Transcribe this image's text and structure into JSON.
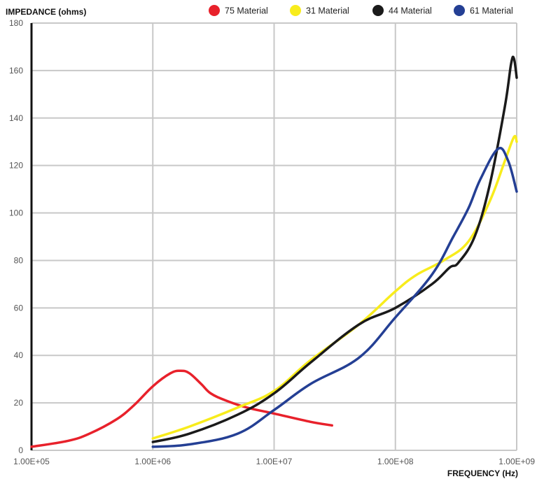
{
  "chart_data": {
    "type": "line",
    "ylabel": "IMPEDANCE (ohms)",
    "xlabel": "FREQUENCY (Hz)",
    "x_scale": "log",
    "xlim": [
      100000,
      1000000000
    ],
    "ylim": [
      0,
      180
    ],
    "x_ticks": [
      100000,
      1000000,
      10000000,
      100000000,
      1000000000
    ],
    "x_tick_labels": [
      "1.00E+05",
      "1.00E+06",
      "1.00E+07",
      "1.00E+08",
      "1.00E+09"
    ],
    "y_ticks": [
      0,
      20,
      40,
      60,
      80,
      100,
      120,
      140,
      160,
      180
    ],
    "y_tick_labels": [
      "0",
      "20",
      "40",
      "60",
      "80",
      "100",
      "120",
      "140",
      "160",
      "180"
    ],
    "grid": true,
    "legend_position": "top-right",
    "series": [
      {
        "name": "75 Material",
        "color": "#e8212b",
        "points": [
          [
            100000,
            1.5
          ],
          [
            200000,
            4
          ],
          [
            300000,
            7
          ],
          [
            500000,
            13
          ],
          [
            700000,
            19
          ],
          [
            1000000,
            27
          ],
          [
            1400000,
            32.5
          ],
          [
            1700000,
            33.5
          ],
          [
            2000000,
            32.5
          ],
          [
            2500000,
            28
          ],
          [
            3000000,
            24
          ],
          [
            4000000,
            21
          ],
          [
            6000000,
            18
          ],
          [
            10000000,
            15.5
          ],
          [
            20000000,
            12
          ],
          [
            30000000,
            10.5
          ]
        ]
      },
      {
        "name": "31 Material",
        "color": "#f8ec1c",
        "points": [
          [
            1000000,
            5
          ],
          [
            2000000,
            10
          ],
          [
            5000000,
            18
          ],
          [
            10000000,
            25
          ],
          [
            20000000,
            38
          ],
          [
            50000000,
            53
          ],
          [
            100000000,
            67
          ],
          [
            150000000,
            74
          ],
          [
            250000000,
            80
          ],
          [
            400000000,
            88
          ],
          [
            600000000,
            105
          ],
          [
            800000000,
            122
          ],
          [
            950000000,
            132
          ],
          [
            1000000000,
            130
          ]
        ]
      },
      {
        "name": "44 Material",
        "color": "#1a1a1a",
        "points": [
          [
            1000000,
            3.5
          ],
          [
            2000000,
            7
          ],
          [
            5000000,
            15
          ],
          [
            10000000,
            24
          ],
          [
            20000000,
            37
          ],
          [
            50000000,
            53
          ],
          [
            100000000,
            60
          ],
          [
            200000000,
            70
          ],
          [
            280000000,
            77
          ],
          [
            330000000,
            79
          ],
          [
            450000000,
            90
          ],
          [
            600000000,
            112
          ],
          [
            800000000,
            145
          ],
          [
            900000000,
            163
          ],
          [
            950000000,
            165
          ],
          [
            1000000000,
            157
          ]
        ]
      },
      {
        "name": "61 Material",
        "color": "#243f94",
        "points": [
          [
            1000000,
            1.5
          ],
          [
            2000000,
            2.5
          ],
          [
            5000000,
            7
          ],
          [
            10000000,
            17
          ],
          [
            20000000,
            28
          ],
          [
            50000000,
            39
          ],
          [
            100000000,
            56
          ],
          [
            200000000,
            74
          ],
          [
            300000000,
            90
          ],
          [
            400000000,
            102
          ],
          [
            500000000,
            114
          ],
          [
            700000000,
            127
          ],
          [
            850000000,
            122
          ],
          [
            1000000000,
            109
          ]
        ]
      }
    ]
  }
}
